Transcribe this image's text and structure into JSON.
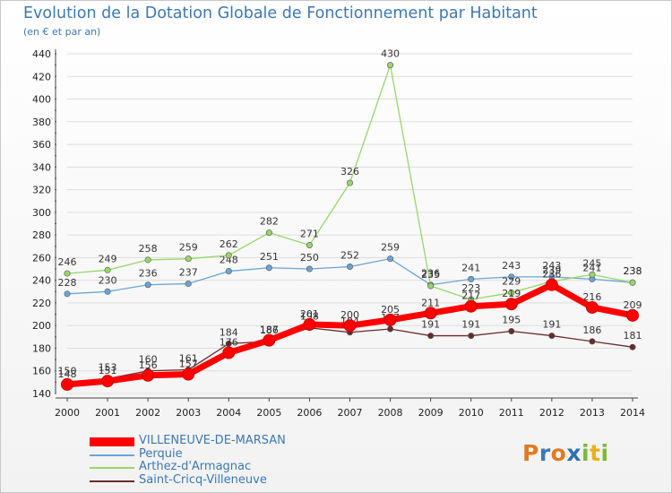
{
  "chart_data": {
    "type": "line",
    "title": "Evolution de la Dotation Globale de Fonctionnement par Habitant",
    "subtitle": "(en € et par an)",
    "x": [
      "2000",
      "2001",
      "2002",
      "2003",
      "2004",
      "2005",
      "2006",
      "2007",
      "2008",
      "2009",
      "2010",
      "2011",
      "2012",
      "2013",
      "2014"
    ],
    "ylim": [
      140,
      440
    ],
    "yticks": [
      "140",
      "160",
      "180",
      "200",
      "220",
      "240",
      "260",
      "280",
      "300",
      "320",
      "340",
      "360",
      "380",
      "400",
      "420",
      "440"
    ],
    "series": [
      {
        "name": "VILLENEUVE-DE-MARSAN",
        "color": "#ff0000",
        "values": [
          148,
          151,
          156,
          157,
          176,
          187,
          201,
          200,
          205,
          211,
          217,
          219,
          236,
          216,
          209
        ]
      },
      {
        "name": "Perquie",
        "color": "#6aa5d6",
        "values": [
          228,
          230,
          236,
          237,
          248,
          251,
          250,
          252,
          259,
          236,
          241,
          243,
          243,
          241,
          238
        ]
      },
      {
        "name": "Arthez-d'Armagnac",
        "color": "#99d66b",
        "values": [
          246,
          249,
          258,
          259,
          262,
          282,
          271,
          326,
          430,
          235,
          223,
          229,
          239,
          245,
          238
        ]
      },
      {
        "name": "Saint-Cricq-Villeneuve",
        "color": "#6b2a2a",
        "values": [
          150,
          153,
          160,
          161,
          184,
          186,
          198,
          194,
          197,
          191,
          191,
          195,
          191,
          186,
          181
        ]
      }
    ],
    "legend": "bottom-left"
  },
  "logo_text": "Proxiti"
}
